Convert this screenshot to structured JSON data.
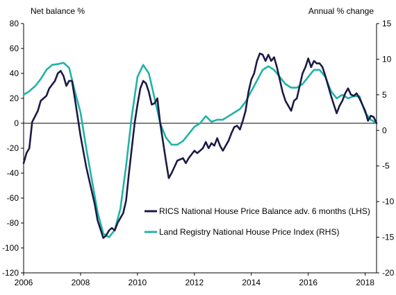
{
  "chart_data": {
    "type": "line",
    "left_axis_title": "Net balance %",
    "right_axis_title": "Annual % change",
    "x_ticks": [
      "2006",
      "2008",
      "2010",
      "2012",
      "2014",
      "2016",
      "2018"
    ],
    "x_range": [
      2006.0,
      2018.4
    ],
    "y_left": {
      "range": [
        -120,
        80
      ],
      "ticks": [
        "80",
        "60",
        "40",
        "20",
        "0",
        "-20",
        "-40",
        "-60",
        "-80",
        "-100",
        "-120"
      ]
    },
    "y_right": {
      "range": [
        -20,
        15
      ],
      "ticks": [
        "15",
        "10",
        "5",
        "0",
        "-5",
        "-10",
        "-15",
        "-20"
      ]
    },
    "zero_line": true,
    "legend_placement": "bottom-center",
    "colors": {
      "rics": "#1c1a45",
      "land_registry": "#1fb3a5"
    },
    "series": [
      {
        "name": "RICS National House Price Balance adv. 6 months (LHS)",
        "axis": "left",
        "points": [
          [
            2006.0,
            -32
          ],
          [
            2006.1,
            -24
          ],
          [
            2006.2,
            -20
          ],
          [
            2006.3,
            1
          ],
          [
            2006.5,
            10
          ],
          [
            2006.6,
            18
          ],
          [
            2006.8,
            22
          ],
          [
            2006.9,
            28
          ],
          [
            2007.1,
            34
          ],
          [
            2007.2,
            40
          ],
          [
            2007.3,
            42
          ],
          [
            2007.4,
            38
          ],
          [
            2007.5,
            30
          ],
          [
            2007.6,
            34
          ],
          [
            2007.7,
            34
          ],
          [
            2007.8,
            20
          ],
          [
            2007.9,
            5
          ],
          [
            2008.0,
            -10
          ],
          [
            2008.2,
            -35
          ],
          [
            2008.4,
            -55
          ],
          [
            2008.5,
            -65
          ],
          [
            2008.6,
            -78
          ],
          [
            2008.7,
            -85
          ],
          [
            2008.8,
            -92
          ],
          [
            2008.9,
            -90
          ],
          [
            2009.0,
            -86
          ],
          [
            2009.1,
            -84
          ],
          [
            2009.2,
            -86
          ],
          [
            2009.3,
            -80
          ],
          [
            2009.5,
            -72
          ],
          [
            2009.6,
            -62
          ],
          [
            2009.7,
            -40
          ],
          [
            2009.8,
            -20
          ],
          [
            2009.9,
            0
          ],
          [
            2010.0,
            15
          ],
          [
            2010.1,
            28
          ],
          [
            2010.2,
            34
          ],
          [
            2010.3,
            32
          ],
          [
            2010.4,
            25
          ],
          [
            2010.5,
            15
          ],
          [
            2010.6,
            16
          ],
          [
            2010.7,
            20
          ],
          [
            2010.8,
            0
          ],
          [
            2010.9,
            -15
          ],
          [
            2011.0,
            -30
          ],
          [
            2011.1,
            -44
          ],
          [
            2011.2,
            -40
          ],
          [
            2011.3,
            -35
          ],
          [
            2011.4,
            -30
          ],
          [
            2011.6,
            -28
          ],
          [
            2011.7,
            -32
          ],
          [
            2011.8,
            -28
          ],
          [
            2011.9,
            -25
          ],
          [
            2012.0,
            -22
          ],
          [
            2012.1,
            -24
          ],
          [
            2012.3,
            -20
          ],
          [
            2012.4,
            -15
          ],
          [
            2012.5,
            -20
          ],
          [
            2012.6,
            -16
          ],
          [
            2012.7,
            -18
          ],
          [
            2012.8,
            -12
          ],
          [
            2012.9,
            -18
          ],
          [
            2013.0,
            -22
          ],
          [
            2013.1,
            -18
          ],
          [
            2013.2,
            -14
          ],
          [
            2013.3,
            -8
          ],
          [
            2013.4,
            -3
          ],
          [
            2013.5,
            -2
          ],
          [
            2013.6,
            -5
          ],
          [
            2013.7,
            2
          ],
          [
            2013.8,
            10
          ],
          [
            2013.9,
            25
          ],
          [
            2014.0,
            35
          ],
          [
            2014.1,
            40
          ],
          [
            2014.2,
            50
          ],
          [
            2014.3,
            56
          ],
          [
            2014.4,
            55
          ],
          [
            2014.5,
            50
          ],
          [
            2014.6,
            55
          ],
          [
            2014.7,
            50
          ],
          [
            2014.8,
            53
          ],
          [
            2014.9,
            45
          ],
          [
            2015.0,
            35
          ],
          [
            2015.1,
            25
          ],
          [
            2015.2,
            18
          ],
          [
            2015.3,
            14
          ],
          [
            2015.4,
            10
          ],
          [
            2015.5,
            18
          ],
          [
            2015.6,
            20
          ],
          [
            2015.7,
            30
          ],
          [
            2015.8,
            40
          ],
          [
            2015.9,
            45
          ],
          [
            2016.0,
            52
          ],
          [
            2016.1,
            45
          ],
          [
            2016.2,
            50
          ],
          [
            2016.3,
            48
          ],
          [
            2016.4,
            48
          ],
          [
            2016.5,
            45
          ],
          [
            2016.6,
            38
          ],
          [
            2016.7,
            30
          ],
          [
            2016.8,
            22
          ],
          [
            2016.9,
            15
          ],
          [
            2017.0,
            8
          ],
          [
            2017.1,
            14
          ],
          [
            2017.2,
            18
          ],
          [
            2017.3,
            24
          ],
          [
            2017.4,
            28
          ],
          [
            2017.5,
            23
          ],
          [
            2017.6,
            22
          ],
          [
            2017.7,
            24
          ],
          [
            2017.8,
            20
          ],
          [
            2017.9,
            15
          ],
          [
            2018.0,
            10
          ],
          [
            2018.1,
            2
          ],
          [
            2018.2,
            6
          ],
          [
            2018.3,
            5
          ],
          [
            2018.4,
            0
          ]
        ]
      },
      {
        "name": "Land Registry National House Price Index (RHS)",
        "axis": "right",
        "points": [
          [
            2006.0,
            5.0
          ],
          [
            2006.2,
            5.5
          ],
          [
            2006.4,
            6.2
          ],
          [
            2006.6,
            7.2
          ],
          [
            2006.8,
            8.5
          ],
          [
            2007.0,
            9.2
          ],
          [
            2007.2,
            9.3
          ],
          [
            2007.4,
            9.5
          ],
          [
            2007.6,
            8.8
          ],
          [
            2007.8,
            5.5
          ],
          [
            2008.0,
            2.5
          ],
          [
            2008.2,
            -2.5
          ],
          [
            2008.4,
            -7.0
          ],
          [
            2008.6,
            -11.5
          ],
          [
            2008.8,
            -14.5
          ],
          [
            2009.0,
            -15.0
          ],
          [
            2009.2,
            -14.0
          ],
          [
            2009.4,
            -11.0
          ],
          [
            2009.6,
            -5.0
          ],
          [
            2009.8,
            2.0
          ],
          [
            2010.0,
            7.5
          ],
          [
            2010.2,
            9.2
          ],
          [
            2010.4,
            8.0
          ],
          [
            2010.6,
            4.5
          ],
          [
            2010.8,
            1.0
          ],
          [
            2011.0,
            -1.0
          ],
          [
            2011.2,
            -2.0
          ],
          [
            2011.4,
            -2.0
          ],
          [
            2011.6,
            -1.5
          ],
          [
            2011.8,
            -0.5
          ],
          [
            2012.0,
            0.5
          ],
          [
            2012.2,
            1.0
          ],
          [
            2012.4,
            2.0
          ],
          [
            2012.6,
            1.2
          ],
          [
            2012.8,
            1.5
          ],
          [
            2013.0,
            1.5
          ],
          [
            2013.2,
            2.0
          ],
          [
            2013.4,
            2.5
          ],
          [
            2013.6,
            3.0
          ],
          [
            2013.8,
            4.0
          ],
          [
            2014.0,
            5.5
          ],
          [
            2014.2,
            7.0
          ],
          [
            2014.4,
            8.5
          ],
          [
            2014.6,
            9.0
          ],
          [
            2014.8,
            8.5
          ],
          [
            2015.0,
            7.5
          ],
          [
            2015.2,
            6.5
          ],
          [
            2015.4,
            6.0
          ],
          [
            2015.6,
            6.0
          ],
          [
            2015.8,
            6.5
          ],
          [
            2016.0,
            7.5
          ],
          [
            2016.2,
            8.5
          ],
          [
            2016.4,
            8.5
          ],
          [
            2016.6,
            7.5
          ],
          [
            2016.8,
            5.5
          ],
          [
            2017.0,
            4.5
          ],
          [
            2017.2,
            5.0
          ],
          [
            2017.4,
            4.5
          ],
          [
            2017.6,
            4.8
          ],
          [
            2017.8,
            4.8
          ],
          [
            2018.0,
            2.5
          ],
          [
            2018.2,
            1.5
          ],
          [
            2018.4,
            1.0
          ]
        ]
      }
    ]
  }
}
